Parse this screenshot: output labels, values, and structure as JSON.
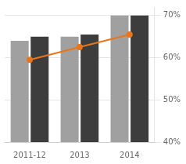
{
  "chart_data": {
    "type": "bar",
    "categories": [
      "2011-12",
      "2013",
      "2014"
    ],
    "series": [
      {
        "color": "#a0a0a0",
        "values": [
          64,
          65,
          70
        ]
      },
      {
        "color": "#3d3d3d",
        "values": [
          65,
          65.5,
          70
        ]
      },
      {
        "type": "line",
        "axis": "y2",
        "color": "#e8751a",
        "marker": "circle",
        "values": [
          59.5,
          62.5,
          65.5
        ]
      }
    ],
    "ylim": [
      40,
      72
    ],
    "y2lim": [
      40,
      72
    ],
    "y2ticks": [
      {
        "value": 40,
        "label": "40%"
      },
      {
        "value": 50,
        "label": "50%"
      },
      {
        "value": 60,
        "label": "60%"
      },
      {
        "value": 70,
        "label": "70%"
      }
    ],
    "grid": true
  }
}
